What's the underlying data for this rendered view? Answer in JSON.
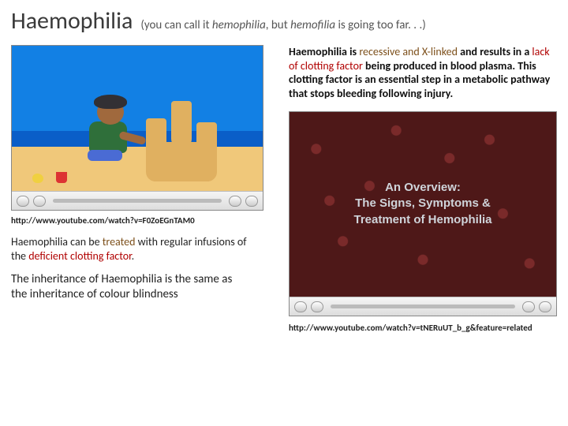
{
  "header": {
    "title": "Haemophilia",
    "subtitle_pre": "(you can call it ",
    "subtitle_em1": "hemophilia",
    "subtitle_mid": ", but ",
    "subtitle_em2": "hemofilia",
    "subtitle_post": " is going too far. . .)"
  },
  "left": {
    "url": "http://www.youtube.com/watch?v=F0ZoEGnTAM0",
    "para_pre": "Haemophilia can be ",
    "para_hl1": "treated",
    "para_mid": " with regular infusions of the ",
    "para_hl2": "deficient clotting factor",
    "para_post": ".",
    "note": "The inheritance of Haemophilia is the same as the inheritance of colour blindness"
  },
  "right": {
    "para1_a": "Haemophilia is ",
    "para1_hA": "recessive and X-linked",
    "para1_b": " and results in a ",
    "para1_hB": "lack of clotting factor",
    "para1_c": " being produced in blood plasma. This clotting factor is an essential step in a metabolic pathway that stops bleeding following injury.",
    "overlay_l1": "An Overview:",
    "overlay_l2": "The Signs, Symptoms &",
    "overlay_l3": "Treatment of Hemophilia",
    "url": "http://www.youtube.com/watch?v=tNERuUT_b_g&feature=related"
  },
  "colors": {
    "hl1": "#7c4f1a",
    "hl2": "#b00000",
    "sky": "#1280e4",
    "sand": "#f0c87a",
    "blood_bg": "#4e1818",
    "overlay_text": "#cfd4da"
  }
}
